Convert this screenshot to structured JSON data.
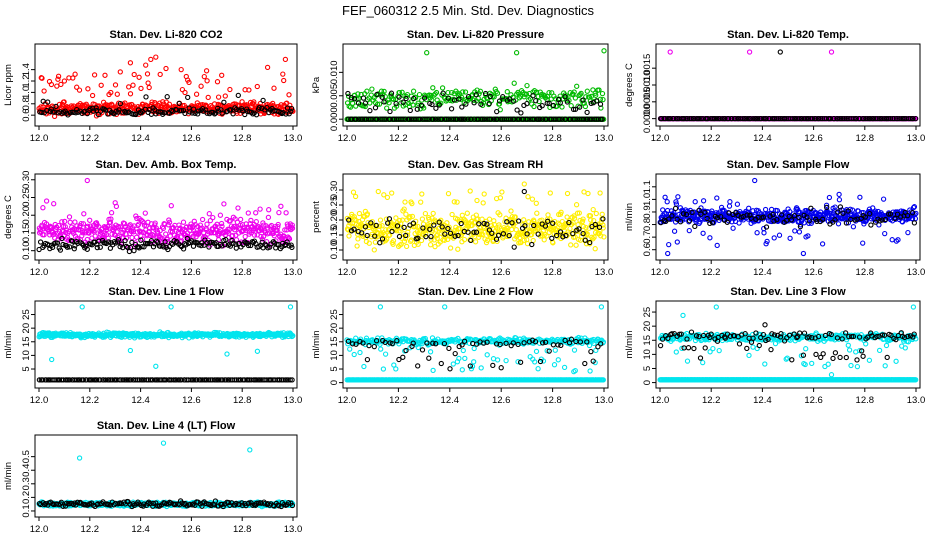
{
  "figure": {
    "title": "FEF_060312  2.5 Min. Std. Dev. Diagnostics"
  },
  "chart_data": [
    {
      "type": "scatter",
      "id": "co2",
      "title": "Stan. Dev. Li-820 CO2",
      "ylabel": "Licor ppm",
      "xlim": [
        12.0,
        13.0
      ],
      "ylim": [
        0.48,
        1.78
      ],
      "xticks": [
        12.0,
        12.2,
        12.4,
        12.6,
        12.8,
        13.0
      ],
      "xtick_labels": [
        "12.0",
        "12.2",
        "12.4",
        "12.6",
        "12.8",
        "13.0"
      ],
      "yticks": [
        0.6,
        0.8,
        1.0,
        1.2,
        1.4
      ],
      "ytick_labels": [
        "0.6",
        "0.8",
        "1.0",
        "1.2",
        "1.4"
      ],
      "series": [
        {
          "color": "#ff0000",
          "n": 460,
          "base": 0.72,
          "spread": 0.09,
          "outlier_rate": 0.13,
          "outlier_range": [
            0.9,
            1.35
          ],
          "extra_points": [
            [
              12.36,
              1.52
            ],
            [
              12.42,
              1.48
            ],
            [
              12.44,
              1.58
            ],
            [
              12.46,
              1.62
            ],
            [
              12.5,
              1.42
            ],
            [
              12.56,
              1.4
            ],
            [
              12.66,
              1.38
            ],
            [
              12.9,
              1.44
            ],
            [
              12.97,
              1.58
            ],
            [
              12.32,
              1.36
            ],
            [
              12.26,
              1.3
            ],
            [
              12.58,
              1.28
            ],
            [
              12.1,
              1.2
            ]
          ]
        },
        {
          "color": "#000000",
          "n": 150,
          "base": 0.67,
          "spread": 0.06,
          "outlier_rate": 0.05,
          "outlier_range": [
            0.78,
            0.95
          ],
          "extra_points": []
        }
      ]
    },
    {
      "type": "scatter",
      "id": "pressure",
      "title": "Stan. Dev. Li-820 Pressure",
      "ylabel": "kPa",
      "xlim": [
        12.0,
        13.0
      ],
      "ylim": [
        -0.0006,
        0.0152
      ],
      "xticks": [
        12.0,
        12.2,
        12.4,
        12.6,
        12.8,
        13.0
      ],
      "xtick_labels": [
        "12.0",
        "12.2",
        "12.4",
        "12.6",
        "12.8",
        "13.0"
      ],
      "yticks": [
        0.0,
        0.005,
        0.01
      ],
      "ytick_labels": [
        "0.000",
        "0.005",
        "0.010"
      ],
      "series": [
        {
          "color": "#00bb00",
          "n": 300,
          "base": 0.0,
          "spread": 0.0,
          "outlier_rate": 0.0,
          "outlier_range": [
            0,
            0
          ],
          "row": true,
          "extra_points": []
        },
        {
          "color": "#00bb00",
          "n": 240,
          "base": 0.0045,
          "spread": 0.002,
          "outlier_rate": 0.0,
          "outlier_range": [
            0,
            0
          ],
          "extra_points": [
            [
              12.31,
              0.0142
            ],
            [
              12.66,
              0.0142
            ],
            [
              13.0,
              0.0146
            ]
          ]
        },
        {
          "color": "#000000",
          "n": 70,
          "base": 0.0035,
          "spread": 0.0018,
          "outlier_rate": 0.0,
          "outlier_range": [
            0,
            0
          ],
          "extra_points": []
        },
        {
          "color": "#000000",
          "n": 120,
          "base": 0.0,
          "spread": 0.0,
          "outlier_rate": 0.0,
          "outlier_range": [
            0,
            0
          ],
          "row": true,
          "extra_points": []
        }
      ]
    },
    {
      "type": "scatter",
      "id": "temp",
      "title": "Stan. Dev. Li-820 Temp.",
      "ylabel": "degrees C",
      "xlim": [
        12.0,
        13.0
      ],
      "ylim": [
        -0.0001,
        0.0021
      ],
      "xticks": [
        12.0,
        12.2,
        12.4,
        12.6,
        12.8,
        13.0
      ],
      "xtick_labels": [
        "12.0",
        "12.2",
        "12.4",
        "12.6",
        "12.8",
        "13.0"
      ],
      "yticks": [
        0.0,
        0.0005,
        0.001,
        0.0015
      ],
      "ytick_labels": [
        "0.0000",
        "0.0005",
        "0.0010",
        "0.0015"
      ],
      "series": [
        {
          "color": "#ee00ee",
          "n": 420,
          "base": 0.0,
          "spread": 0.0,
          "outlier_rate": 0.0,
          "outlier_range": [
            0,
            0
          ],
          "row": true,
          "extra_points": [
            [
              12.04,
              0.00198
            ],
            [
              12.35,
              0.00198
            ],
            [
              12.67,
              0.00198
            ]
          ]
        },
        {
          "color": "#000000",
          "n": 150,
          "base": 0.0,
          "spread": 0.0,
          "outlier_rate": 0.0,
          "outlier_range": [
            0,
            0
          ],
          "row": true,
          "extra_points": [
            [
              12.47,
              0.00198
            ]
          ]
        }
      ]
    },
    {
      "type": "scatter",
      "id": "ambbox",
      "title": "Stan. Dev. Amb. Box Temp.",
      "ylabel": "degrees C",
      "xlim": [
        12.0,
        13.0
      ],
      "ylim": [
        0.085,
        0.305
      ],
      "xticks": [
        12.0,
        12.2,
        12.4,
        12.6,
        12.8,
        13.0
      ],
      "xtick_labels": [
        "12.0",
        "12.2",
        "12.4",
        "12.6",
        "12.8",
        "13.0"
      ],
      "yticks": [
        0.1,
        0.15,
        0.2,
        0.25,
        0.3
      ],
      "ytick_labels": [
        "0.10",
        "0.15",
        "0.20",
        "0.25",
        "0.30"
      ],
      "series": [
        {
          "color": "#ee00ee",
          "n": 460,
          "base": 0.155,
          "spread": 0.03,
          "outlier_rate": 0.04,
          "outlier_range": [
            0.2,
            0.235
          ],
          "extra_points": [
            [
              12.19,
              0.298
            ],
            [
              12.03,
              0.24
            ],
            [
              12.3,
              0.235
            ]
          ]
        },
        {
          "color": "#000000",
          "n": 170,
          "base": 0.118,
          "spread": 0.012,
          "outlier_rate": 0.0,
          "outlier_range": [
            0,
            0
          ],
          "extra_points": []
        }
      ]
    },
    {
      "type": "scatter",
      "id": "rh",
      "title": "Stan. Dev. Gas Stream RH",
      "ylabel": "percent",
      "xlim": [
        12.0,
        13.0
      ],
      "ylim": [
        0.08,
        0.34
      ],
      "xticks": [
        12.0,
        12.2,
        12.4,
        12.6,
        12.8,
        13.0
      ],
      "xtick_labels": [
        "12.0",
        "12.2",
        "12.4",
        "12.6",
        "12.8",
        "13.0"
      ],
      "yticks": [
        0.1,
        0.15,
        0.2,
        0.25,
        0.3
      ],
      "ytick_labels": [
        "0.10",
        "0.15",
        "0.20",
        "0.25",
        "0.30"
      ],
      "series": [
        {
          "color": "#ffee00",
          "n": 520,
          "base": 0.17,
          "spread": 0.045,
          "outlier_rate": 0.05,
          "outlier_range": [
            0.25,
            0.3
          ],
          "extra_points": [
            [
              12.69,
              0.32
            ]
          ]
        },
        {
          "color": "#000000",
          "n": 80,
          "base": 0.16,
          "spread": 0.04,
          "outlier_rate": 0.0,
          "outlier_range": [
            0,
            0
          ],
          "extra_points": [
            [
              12.69,
              0.295
            ]
          ]
        }
      ]
    },
    {
      "type": "scatter",
      "id": "sampleflow",
      "title": "Stan. Dev. Sample Flow",
      "ylabel": "ml/min",
      "xlim": [
        12.0,
        13.0
      ],
      "ylim": [
        0.55,
        1.17
      ],
      "xticks": [
        12.0,
        12.2,
        12.4,
        12.6,
        12.8,
        13.0
      ],
      "xtick_labels": [
        "12.0",
        "12.2",
        "12.4",
        "12.6",
        "12.8",
        "13.0"
      ],
      "yticks": [
        0.6,
        0.7,
        0.8,
        0.9,
        1.0,
        1.1
      ],
      "ytick_labels": [
        "0.6",
        "0.7",
        "0.8",
        "0.9",
        "1.0",
        "1.1"
      ],
      "series": [
        {
          "color": "#0000ee",
          "n": 520,
          "base": 0.87,
          "spread": 0.05,
          "outlier_rate": 0.12,
          "outlier_range": [
            0.62,
            1.05
          ],
          "extra_points": [
            [
              12.37,
              1.15
            ],
            [
              12.03,
              0.57
            ],
            [
              12.56,
              0.57
            ]
          ]
        },
        {
          "color": "#000000",
          "n": 90,
          "base": 0.85,
          "spread": 0.06,
          "outlier_rate": 0.0,
          "outlier_range": [
            0,
            0
          ],
          "extra_points": []
        }
      ]
    },
    {
      "type": "scatter",
      "id": "line1",
      "title": "Stan. Dev. Line 1 Flow",
      "ylabel": "ml/min",
      "xlim": [
        12.0,
        13.0
      ],
      "ylim": [
        -0.5,
        28.5
      ],
      "xticks": [
        12.0,
        12.2,
        12.4,
        12.6,
        12.8,
        13.0
      ],
      "xtick_labels": [
        "12.0",
        "12.2",
        "12.4",
        "12.6",
        "12.8",
        "13.0"
      ],
      "yticks": [
        5,
        10,
        15,
        20,
        25
      ],
      "ytick_labels": [
        "5",
        "10",
        "15",
        "20",
        "25"
      ],
      "series": [
        {
          "color": "#00e5ee",
          "n": 480,
          "base": 17.5,
          "spread": 0.7,
          "outlier_rate": 0.0,
          "outlier_range": [
            0,
            0
          ],
          "extra_points": [
            [
              12.05,
              8.5
            ],
            [
              12.36,
              11.8
            ],
            [
              12.46,
              6.0
            ],
            [
              12.74,
              10.5
            ],
            [
              12.17,
              27.8
            ],
            [
              12.52,
              27.8
            ],
            [
              12.99,
              27.8
            ],
            [
              12.86,
              11.5
            ]
          ]
        },
        {
          "color": "#000000",
          "n": 150,
          "base": 1.0,
          "spread": 0.0,
          "outlier_rate": 0.0,
          "outlier_range": [
            0,
            0
          ],
          "row": true,
          "extra_points": []
        }
      ]
    },
    {
      "type": "scatter",
      "id": "line2",
      "title": "Stan. Dev. Line 2 Flow",
      "ylabel": "ml/min",
      "xlim": [
        12.0,
        13.0
      ],
      "ylim": [
        -0.5,
        28.5
      ],
      "xticks": [
        12.0,
        12.2,
        12.4,
        12.6,
        12.8,
        13.0
      ],
      "xtick_labels": [
        "12.0",
        "12.2",
        "12.4",
        "12.6",
        "12.8",
        "13.0"
      ],
      "yticks": [
        0,
        5,
        10,
        15,
        20,
        25
      ],
      "ytick_labels": [
        "0",
        "5",
        "10",
        "15",
        "20",
        "25"
      ],
      "series": [
        {
          "color": "#00e5ee",
          "n": 330,
          "base": 1.0,
          "spread": 0.0,
          "outlier_rate": 0.0,
          "outlier_range": [
            0,
            0
          ],
          "row": true,
          "extra_points": []
        },
        {
          "color": "#00e5ee",
          "n": 330,
          "base": 15.2,
          "spread": 1.0,
          "outlier_rate": 0.12,
          "outlier_range": [
            4,
            13
          ],
          "extra_points": [
            [
              12.13,
              27.8
            ],
            [
              12.38,
              27.8
            ],
            [
              12.99,
              27.8
            ]
          ]
        },
        {
          "color": "#000000",
          "n": 70,
          "base": 14.5,
          "spread": 1.2,
          "outlier_rate": 0.35,
          "outlier_range": [
            5,
            13
          ],
          "extra_points": []
        }
      ]
    },
    {
      "type": "scatter",
      "id": "line3",
      "title": "Stan. Dev. Line 3 Flow",
      "ylabel": "ml/min",
      "xlim": [
        12.0,
        13.0
      ],
      "ylim": [
        -0.5,
        27.5
      ],
      "xticks": [
        12.0,
        12.2,
        12.4,
        12.6,
        12.8,
        13.0
      ],
      "xtick_labels": [
        "12.0",
        "12.2",
        "12.4",
        "12.6",
        "12.8",
        "13.0"
      ],
      "yticks": [
        0,
        5,
        10,
        15,
        20,
        25
      ],
      "ytick_labels": [
        "0",
        "5",
        "10",
        "15",
        "20",
        "25"
      ],
      "series": [
        {
          "color": "#00e5ee",
          "n": 330,
          "base": 1.0,
          "spread": 0.0,
          "outlier_rate": 0.0,
          "outlier_range": [
            0,
            0
          ],
          "row": true,
          "extra_points": []
        },
        {
          "color": "#00e5ee",
          "n": 320,
          "base": 16.0,
          "spread": 1.1,
          "outlier_rate": 0.12,
          "outlier_range": [
            5,
            14
          ],
          "extra_points": [
            [
              12.09,
              23.8
            ],
            [
              12.22,
              26.8
            ],
            [
              12.67,
              2.8
            ],
            [
              12.99,
              26.8
            ]
          ]
        },
        {
          "color": "#000000",
          "n": 110,
          "base": 16.5,
          "spread": 1.2,
          "outlier_rate": 0.25,
          "outlier_range": [
            8,
            15
          ],
          "extra_points": [
            [
              12.41,
              20.5
            ]
          ]
        }
      ]
    },
    {
      "type": "scatter",
      "id": "line4",
      "title": "Stan. Dev. Line 4 (LT) Flow",
      "ylabel": "ml/min",
      "xlim": [
        12.0,
        13.0
      ],
      "ylim": [
        0.085,
        0.63
      ],
      "xticks": [
        12.0,
        12.2,
        12.4,
        12.6,
        12.8,
        13.0
      ],
      "xtick_labels": [
        "12.0",
        "12.2",
        "12.4",
        "12.6",
        "12.8",
        "13.0"
      ],
      "yticks": [
        0.1,
        0.2,
        0.3,
        0.4,
        0.5
      ],
      "ytick_labels": [
        "0.1",
        "0.2",
        "0.3",
        "0.4",
        "0.5"
      ],
      "series": [
        {
          "color": "#00e5ee",
          "n": 520,
          "base": 0.15,
          "spread": 0.012,
          "outlier_rate": 0.0,
          "outlier_range": [
            0,
            0
          ],
          "extra_points": [
            [
              12.16,
              0.49
            ],
            [
              12.49,
              0.6
            ],
            [
              12.83,
              0.55
            ]
          ]
        },
        {
          "color": "#000000",
          "n": 160,
          "base": 0.15,
          "spread": 0.015,
          "outlier_rate": 0.0,
          "outlier_range": [
            0,
            0
          ],
          "extra_points": []
        }
      ]
    }
  ]
}
